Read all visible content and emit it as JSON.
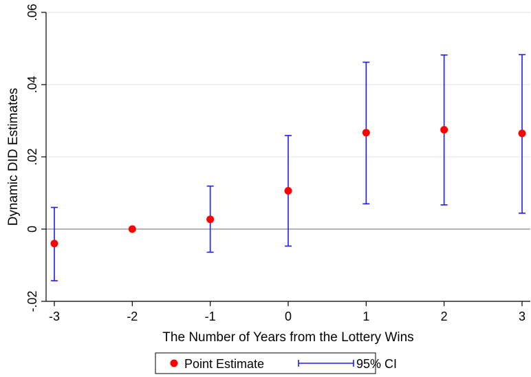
{
  "chart_data": {
    "type": "scatter",
    "xlabel": "The Number of Years from the Lottery Wins",
    "ylabel": "Dynamic DID Estimates",
    "xlim": [
      -3,
      3
    ],
    "ylim": [
      -0.02,
      0.06
    ],
    "x_ticks": [
      -3,
      -2,
      -1,
      0,
      1,
      2,
      3
    ],
    "x_tick_labels": [
      "-3",
      "-2",
      "-1",
      "0",
      "1",
      "2",
      "3"
    ],
    "y_ticks": [
      -0.02,
      0,
      0.02,
      0.04,
      0.06
    ],
    "y_tick_labels": [
      "-.02",
      "0",
      ".02",
      ".04",
      ".06"
    ],
    "grid": true,
    "reference_line_y": 0,
    "series": [
      {
        "name": "Point Estimate",
        "kind": "point",
        "color": "#ff0000",
        "x": [
          -3,
          -2,
          -1,
          0,
          1,
          2,
          3
        ],
        "values": [
          -0.004,
          0.0,
          0.0027,
          0.0106,
          0.0267,
          0.0275,
          0.0265
        ]
      },
      {
        "name": "95% CI",
        "kind": "errorbar",
        "color": "#1a1aff",
        "x": [
          -3,
          -1,
          0,
          1,
          2,
          3
        ],
        "lower": [
          -0.0143,
          -0.0064,
          -0.0047,
          0.007,
          0.0067,
          0.0044
        ],
        "upper": [
          0.006,
          0.0119,
          0.0259,
          0.0462,
          0.0482,
          0.0483
        ]
      }
    ],
    "legend": {
      "position": "bottom-center",
      "entries": [
        "Point Estimate",
        "95% CI"
      ]
    }
  }
}
